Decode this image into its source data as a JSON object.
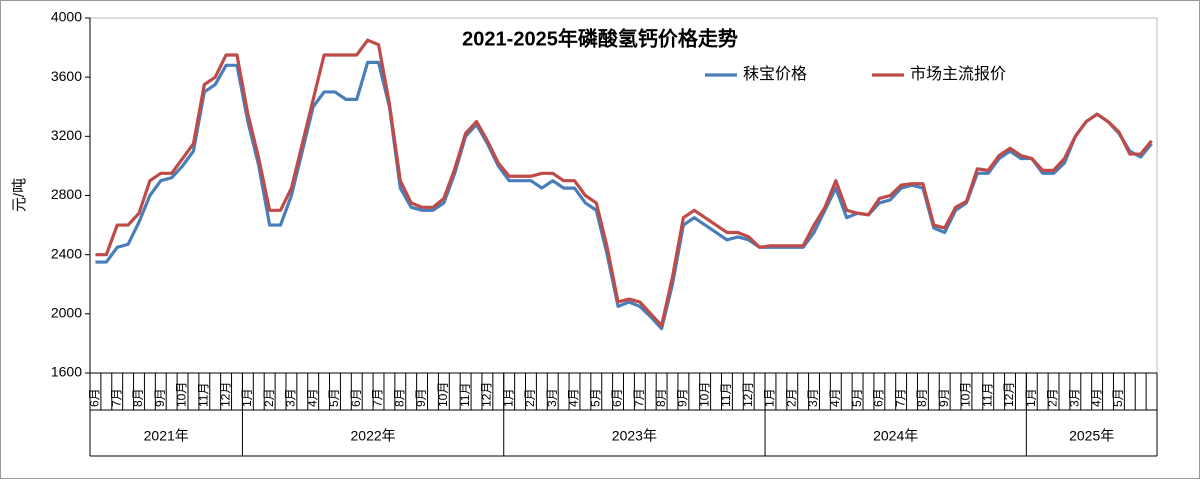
{
  "chart_data": {
    "type": "line",
    "title": "2021-2025年磷酸氢钙价格走势",
    "y_label": "元/吨",
    "categories": [
      "6月",
      null,
      "7月",
      null,
      "8月",
      null,
      "9月",
      null,
      "10月",
      null,
      "11月",
      null,
      "12月",
      null,
      "1月",
      null,
      "2月",
      null,
      "3月",
      null,
      "4月",
      null,
      "5月",
      null,
      "6月",
      null,
      "7月",
      null,
      "8月",
      null,
      "9月",
      null,
      "10月",
      null,
      "11月",
      null,
      "12月",
      null,
      "1月",
      null,
      "2月",
      null,
      "3月",
      null,
      "4月",
      null,
      "5月",
      null,
      "6月",
      null,
      "7月",
      null,
      "8月",
      null,
      "9月",
      null,
      "10月",
      null,
      "11月",
      null,
      "12月",
      null,
      "1月",
      null,
      "2月",
      null,
      "3月",
      null,
      "4月",
      null,
      "5月",
      null,
      "6月",
      null,
      "7月",
      null,
      "8月",
      null,
      "9月",
      null,
      "10月",
      null,
      "11月",
      null,
      "12月",
      null,
      "1月",
      null,
      "2月",
      null,
      "3月",
      null,
      "4月",
      null,
      "5月",
      null,
      null,
      null
    ],
    "years": [
      "2021年",
      "2022年",
      "2023年",
      "2024年",
      "2025年"
    ],
    "series": [
      {
        "name": "秣宝价格",
        "color": "#4a7ebb",
        "values": [
          2350,
          2350,
          2450,
          2470,
          2620,
          2800,
          2900,
          2920,
          3000,
          3100,
          3500,
          3550,
          3680,
          3680,
          3300,
          3000,
          2600,
          2600,
          2800,
          3100,
          3400,
          3500,
          3500,
          3450,
          3450,
          3700,
          3700,
          3400,
          2850,
          2720,
          2700,
          2700,
          2750,
          2950,
          3200,
          3280,
          3150,
          3000,
          2900,
          2900,
          2900,
          2850,
          2900,
          2850,
          2850,
          2750,
          2700,
          2400,
          2050,
          2080,
          2050,
          1980,
          1900,
          2200,
          2600,
          2650,
          2600,
          2550,
          2500,
          2520,
          2500,
          2450,
          2450,
          2450,
          2450,
          2450,
          2550,
          2700,
          2850,
          2650,
          2680,
          2670,
          2750,
          2770,
          2850,
          2870,
          2850,
          2580,
          2550,
          2700,
          2750,
          2950,
          2950,
          3050,
          3100,
          3050,
          3050,
          2950,
          2950,
          3020,
          3200,
          3300,
          3350,
          3300,
          3220,
          3100,
          3060,
          3150
        ]
      },
      {
        "name": "市场主流报价",
        "color": "#be4b48",
        "values": [
          2400,
          2400,
          2600,
          2600,
          2680,
          2900,
          2950,
          2950,
          3050,
          3150,
          3550,
          3600,
          3750,
          3750,
          3350,
          3050,
          2700,
          2700,
          2850,
          3150,
          3450,
          3750,
          3750,
          3750,
          3750,
          3850,
          3820,
          3420,
          2900,
          2750,
          2720,
          2720,
          2780,
          2980,
          3220,
          3300,
          3170,
          3020,
          2930,
          2930,
          2930,
          2950,
          2950,
          2900,
          2900,
          2800,
          2750,
          2450,
          2080,
          2100,
          2080,
          2000,
          1920,
          2250,
          2650,
          2700,
          2650,
          2600,
          2550,
          2550,
          2520,
          2450,
          2460,
          2460,
          2460,
          2460,
          2600,
          2720,
          2900,
          2700,
          2680,
          2670,
          2780,
          2800,
          2870,
          2880,
          2880,
          2600,
          2580,
          2720,
          2760,
          2980,
          2970,
          3070,
          3120,
          3070,
          3050,
          2970,
          2970,
          3050,
          3200,
          3300,
          3350,
          3300,
          3230,
          3080,
          3080,
          3170
        ]
      }
    ],
    "ylim": [
      1600,
      4000
    ],
    "yticks": [
      1600,
      2000,
      2400,
      2800,
      3200,
      3600,
      4000
    ],
    "grid": false,
    "legend": "top"
  }
}
